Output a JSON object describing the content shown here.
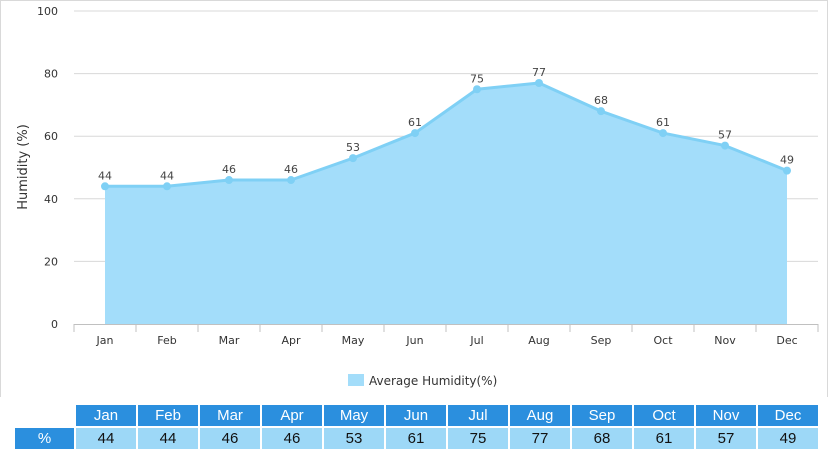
{
  "chart_data": {
    "type": "area",
    "categories": [
      "Jan",
      "Feb",
      "Mar",
      "Apr",
      "May",
      "Jun",
      "Jul",
      "Aug",
      "Sep",
      "Oct",
      "Nov",
      "Dec"
    ],
    "series": [
      {
        "name": "Average Humidity(%)",
        "values": [
          44,
          44,
          46,
          46,
          53,
          61,
          75,
          77,
          68,
          61,
          57,
          49
        ]
      }
    ],
    "title": "",
    "xlabel": "",
    "ylabel": "Humidity (%)",
    "ylim": [
      0,
      100
    ],
    "yticks": [
      0,
      20,
      40,
      60,
      80,
      100
    ],
    "grid": true,
    "legend_position": "bottom-center",
    "colors": {
      "area": "#a3ddfa",
      "line": "#7fd0f5",
      "marker": "#7fd0f5"
    }
  },
  "table": {
    "row_header": "%",
    "months": [
      "Jan",
      "Feb",
      "Mar",
      "Apr",
      "May",
      "Jun",
      "Jul",
      "Aug",
      "Sep",
      "Oct",
      "Nov",
      "Dec"
    ],
    "values": [
      "44",
      "44",
      "46",
      "46",
      "53",
      "61",
      "75",
      "77",
      "68",
      "61",
      "57",
      "49"
    ]
  }
}
